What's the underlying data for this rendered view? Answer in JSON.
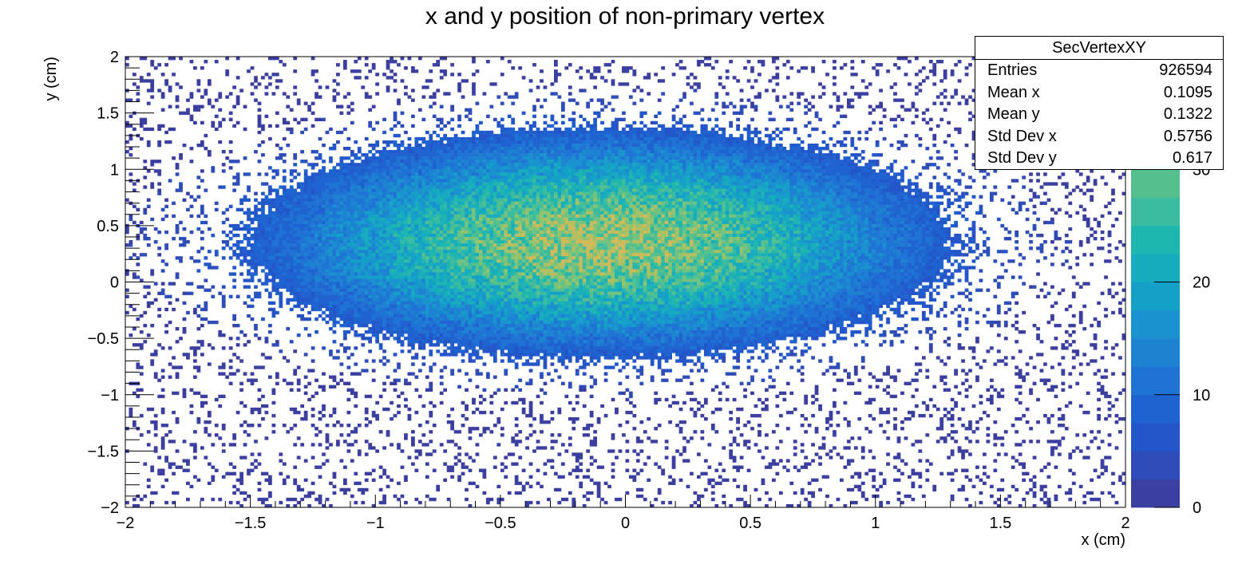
{
  "chart_data": {
    "type": "heatmap",
    "title": "x and y position of non-primary vertex",
    "xlabel": "x (cm)",
    "ylabel": "y (cm)",
    "xlim": [
      -2,
      2
    ],
    "ylim": [
      -2,
      2
    ],
    "x_ticks": [
      -2,
      -1.5,
      -1,
      -0.5,
      0,
      0.5,
      1,
      1.5,
      2
    ],
    "x_tick_labels": [
      "−2",
      "−1.5",
      "−1",
      "−0.5",
      "0",
      "0.5",
      "1",
      "1.5",
      "2"
    ],
    "y_ticks": [
      2,
      1.5,
      1,
      0.5,
      0,
      -0.5,
      -1,
      -1.5,
      -2
    ],
    "y_tick_labels": [
      "2",
      "1.5",
      "1",
      "0.5",
      "0",
      "−0.5",
      "−1",
      "−1.5",
      "−2"
    ],
    "color_scale": {
      "zlim": [
        0,
        40
      ],
      "ticks": [
        0,
        10,
        20,
        30
      ],
      "tick_labels": [
        "0",
        "10",
        "20",
        "30"
      ],
      "palette": [
        "#3b3fa0",
        "#2f4db8",
        "#2356c9",
        "#1f63d1",
        "#1f73d4",
        "#1d82d2",
        "#1a92cf",
        "#15a0c8",
        "#17acbe",
        "#20b6b0",
        "#3bbca0",
        "#55c08e",
        "#74c27f",
        "#94c36e",
        "#b5bf62",
        "#d2b95a"
      ]
    },
    "distribution": {
      "shape": "2D gaussian-like blob with uniform background",
      "peak_x": -0.1,
      "peak_y": 0.35,
      "peak_count": 34,
      "core_radius_x": 0.9,
      "core_radius_y": 0.65
    },
    "grid": false,
    "legend": "none"
  },
  "stats": {
    "title": "SecVertexXY",
    "rows": [
      {
        "label": "Entries",
        "value": "926594"
      },
      {
        "label": "Mean x",
        "value": "0.1095"
      },
      {
        "label": "Mean y",
        "value": "0.1322"
      },
      {
        "label": "Std Dev x",
        "value": "0.5756"
      },
      {
        "label": "Std Dev y",
        "value": "0.617"
      }
    ]
  }
}
